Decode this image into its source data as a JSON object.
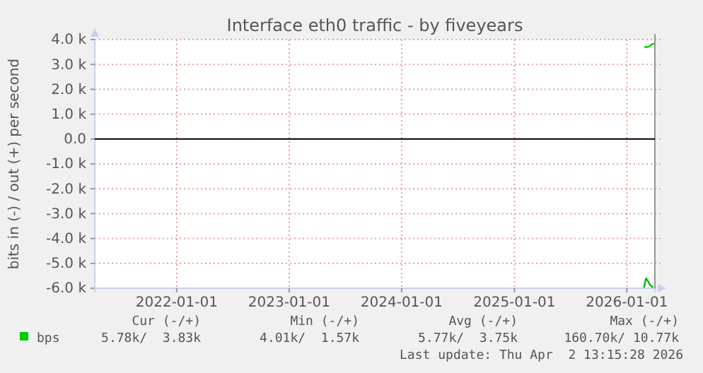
{
  "chart_data": {
    "type": "line",
    "title": "Interface eth0 traffic - by fiveyears",
    "ylabel": "bits in (-) / out (+) per second",
    "xlim": [
      "2021-04-10",
      "2026-04-02"
    ],
    "xticks": [
      {
        "value": "2022-01-01",
        "label": "2022-01-01"
      },
      {
        "value": "2023-01-01",
        "label": "2023-01-01"
      },
      {
        "value": "2024-01-01",
        "label": "2024-01-01"
      },
      {
        "value": "2025-01-01",
        "label": "2025-01-01"
      },
      {
        "value": "2026-01-01",
        "label": "2026-01-01"
      }
    ],
    "ylim": [
      -6000,
      4000
    ],
    "yticks": [
      {
        "value": 4000,
        "label": "4.0 k"
      },
      {
        "value": 3000,
        "label": "3.0 k"
      },
      {
        "value": 2000,
        "label": "2.0 k"
      },
      {
        "value": 1000,
        "label": "1.0 k"
      },
      {
        "value": 0,
        "label": "0.0"
      },
      {
        "value": -1000,
        "label": "-1.0 k"
      },
      {
        "value": -2000,
        "label": "-2.0 k"
      },
      {
        "value": -3000,
        "label": "-3.0 k"
      },
      {
        "value": -4000,
        "label": "-4.0 k"
      },
      {
        "value": -5000,
        "label": "-5.0 k"
      },
      {
        "value": -6000,
        "label": "-6.0 k"
      }
    ],
    "series": [
      {
        "name": "bps",
        "color": "#00cc00",
        "x": [
          "2026-03-01",
          "2026-03-08",
          "2026-03-15",
          "2026-03-22",
          "2026-03-29"
        ],
        "values": [
          3700,
          3700,
          3720,
          3800,
          3830
        ]
      },
      {
        "color": "#00bb00",
        "x": [
          "2026-02-26",
          "2026-03-04",
          "2026-03-10",
          "2026-03-16",
          "2026-03-25"
        ],
        "values": [
          -5950,
          -5600,
          -5700,
          -5850,
          -5950
        ]
      }
    ],
    "ref_lines": [
      {
        "axis": "y",
        "value": 0,
        "color": "#000000"
      }
    ],
    "grid": true,
    "legend": "bottom",
    "annotations": [
      "Cur (-/+)",
      "Min (-/+)",
      "Avg (-/+)",
      "Max (-/+)",
      "5.78k/  3.83k",
      "4.01k/  1.57k",
      "5.77k/  3.75k",
      "160.70k/ 10.77k",
      "Last update: Thu Apr  2 13:15:28 2026"
    ]
  }
}
